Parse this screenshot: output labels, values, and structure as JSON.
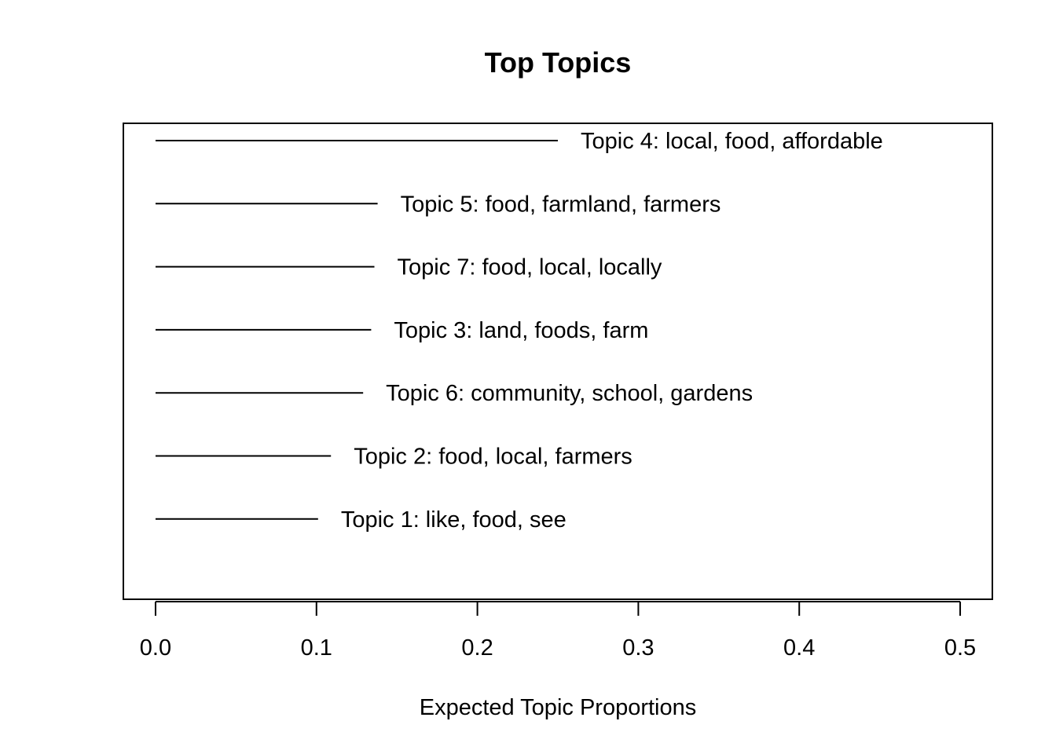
{
  "chart_data": {
    "type": "bar",
    "orientation": "horizontal",
    "title": "Top Topics",
    "xlabel": "Expected Topic Proportions",
    "ylabel": "",
    "xlim": [
      -0.02,
      0.52
    ],
    "x_ticks": [
      0.0,
      0.1,
      0.2,
      0.3,
      0.4,
      0.5
    ],
    "x_tick_labels": [
      "0.0",
      "0.1",
      "0.2",
      "0.3",
      "0.4",
      "0.5"
    ],
    "grid": false,
    "legend": "none",
    "colors": {
      "line": "#000000",
      "frame": "#000000",
      "background": "#ffffff"
    },
    "topics": [
      {
        "label": "Topic 4: local, food, affordable",
        "value": 0.25
      },
      {
        "label": "Topic 5: food, farmland, farmers",
        "value": 0.138
      },
      {
        "label": "Topic 7: food, local, locally",
        "value": 0.136
      },
      {
        "label": "Topic 3: land, foods, farm",
        "value": 0.134
      },
      {
        "label": "Topic 6: community, school, gardens",
        "value": 0.129
      },
      {
        "label": "Topic 2: food, local, farmers",
        "value": 0.109
      },
      {
        "label": "Topic 1: like, food, see",
        "value": 0.101
      }
    ]
  }
}
